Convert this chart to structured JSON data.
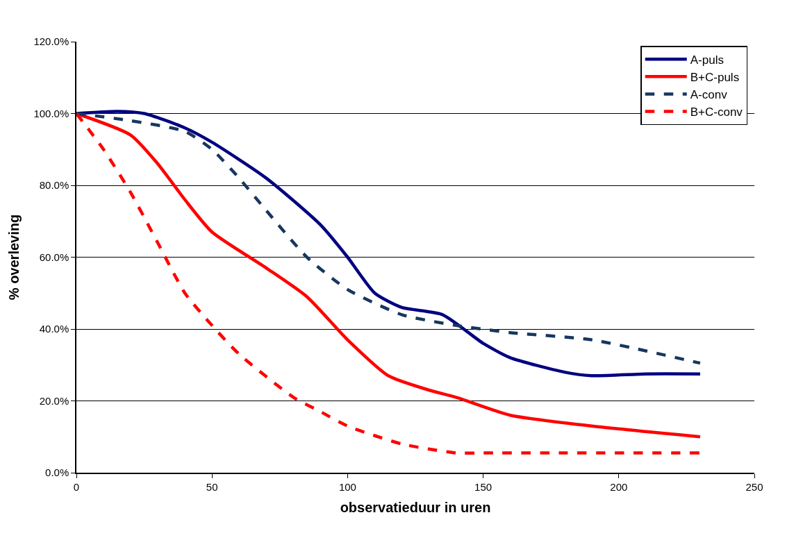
{
  "chart_data": {
    "type": "line",
    "xlabel": "observatieduur in uren",
    "ylabel": "% overleving",
    "xlim": [
      0,
      250
    ],
    "xticks": [
      0,
      50,
      100,
      150,
      200,
      250
    ],
    "ylim": [
      0,
      120
    ],
    "yticks": [
      {
        "value": 0,
        "label": "0.0%"
      },
      {
        "value": 20,
        "label": "20.0%"
      },
      {
        "value": 40,
        "label": "40.0%"
      },
      {
        "value": 60,
        "label": "60.0%"
      },
      {
        "value": 80,
        "label": "80.0%"
      },
      {
        "value": 100,
        "label": "100.0%"
      },
      {
        "value": 120,
        "label": "120.0%"
      }
    ],
    "grid": "y",
    "legend": "top right",
    "marker": "none",
    "series": [
      {
        "name": "A-puls",
        "color": "#000080",
        "line_style": "solid",
        "x": [
          0,
          15,
          25,
          40,
          50,
          70,
          90,
          100,
          110,
          120,
          135,
          150,
          160,
          180,
          190,
          210,
          230
        ],
        "values": [
          100,
          100.6,
          100,
          96,
          92,
          82,
          69,
          60,
          50,
          46,
          44,
          36,
          32,
          28,
          27,
          27.5,
          27.5
        ]
      },
      {
        "name": "B+C-puls",
        "color": "#ff0000",
        "line_style": "solid",
        "x": [
          0,
          20,
          30,
          40,
          50,
          70,
          85,
          100,
          115,
          130,
          140,
          160,
          190,
          230
        ],
        "values": [
          100,
          94,
          86,
          76,
          67,
          57,
          49,
          37,
          27,
          23,
          21,
          16,
          13,
          10
        ]
      },
      {
        "name": "A-conv",
        "color": "#17375e",
        "line_style": "dashed",
        "x": [
          0,
          20,
          40,
          50,
          60,
          70,
          85,
          100,
          120,
          140,
          160,
          190,
          230
        ],
        "values": [
          100,
          98,
          95,
          90,
          82,
          73,
          60,
          51,
          44,
          41,
          39,
          37,
          30.5
        ]
      },
      {
        "name": "B+C-conv",
        "color": "#ff0000",
        "line_style": "dashed",
        "x": [
          0,
          10,
          20,
          30,
          40,
          50,
          60,
          80,
          90,
          100,
          120,
          140,
          150,
          180,
          230
        ],
        "values": [
          100,
          90,
          78,
          64,
          50,
          41,
          33,
          21,
          17,
          13,
          8,
          5.5,
          5.5,
          5.5,
          5.5
        ]
      }
    ]
  }
}
